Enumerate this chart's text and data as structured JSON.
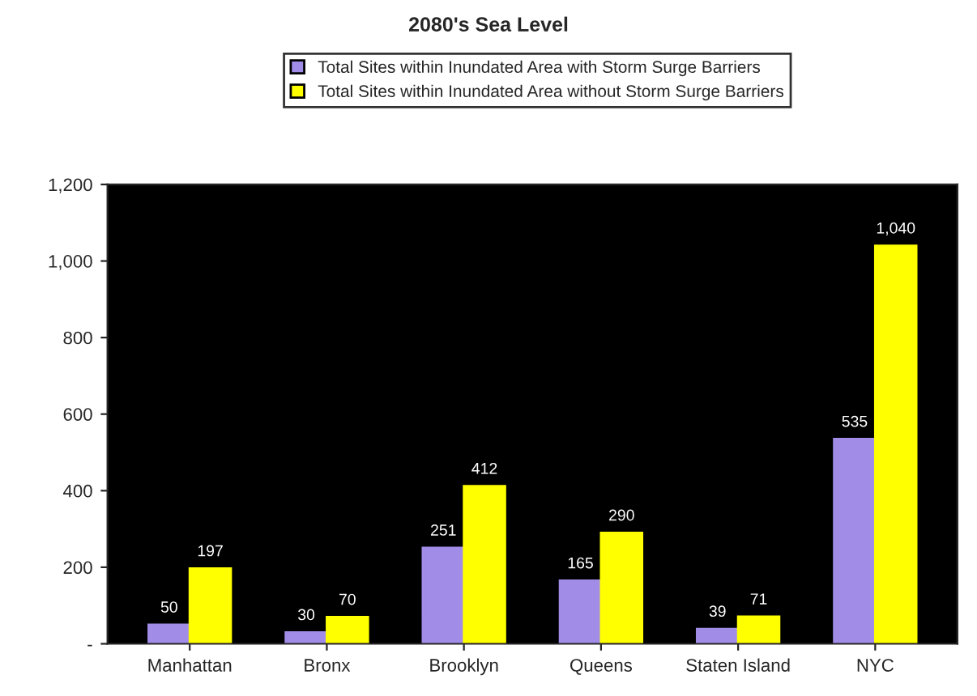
{
  "chart_data": {
    "type": "bar",
    "title": "2080's Sea Level",
    "categories": [
      "Manhattan",
      "Bronx",
      "Brooklyn",
      "Queens",
      "Staten Island",
      "NYC"
    ],
    "series": [
      {
        "name": "Total Sites within Inundated Area with Storm Surge Barriers",
        "color": "#a18ce8",
        "values": [
          50,
          30,
          251,
          165,
          39,
          535
        ],
        "value_labels": [
          "50",
          "30",
          "251",
          "165",
          "39",
          "535"
        ]
      },
      {
        "name": "Total Sites within Inundated Area without Storm Surge Barriers",
        "color": "#ffff00",
        "values": [
          197,
          70,
          412,
          290,
          71,
          1040
        ],
        "value_labels": [
          "197",
          "70",
          "412",
          "290",
          "71",
          "1,040"
        ]
      }
    ],
    "ylim": [
      0,
      1200
    ],
    "yticks": [
      {
        "value": 0,
        "label": "-"
      },
      200,
      400,
      600,
      800,
      {
        "value": 1000,
        "label": "1,000"
      },
      {
        "value": 1200,
        "label": "1,200"
      }
    ],
    "legend": "top",
    "grid": false
  }
}
